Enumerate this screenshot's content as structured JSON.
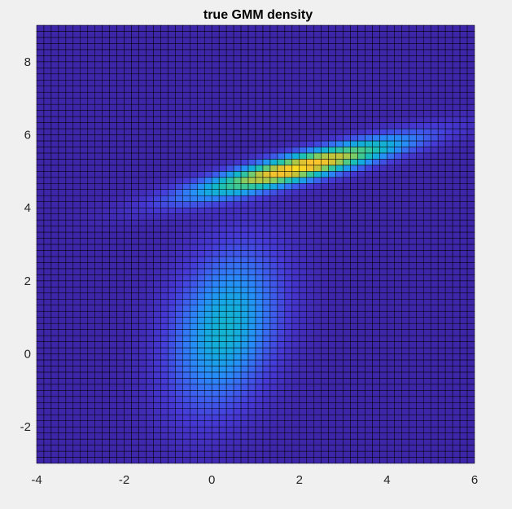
{
  "chart_data": {
    "type": "heatmap",
    "title": "true GMM density",
    "xlabel": "",
    "ylabel": "",
    "xlim": [
      -4,
      6
    ],
    "ylim": [
      -3,
      9
    ],
    "x_ticks": [
      -4,
      -2,
      0,
      2,
      4,
      6
    ],
    "y_ticks": [
      -2,
      0,
      2,
      4,
      6,
      8
    ],
    "x_tick_labels": [
      "-4",
      "-2",
      "0",
      "2",
      "4",
      "6"
    ],
    "y_tick_labels": [
      "-2",
      "0",
      "2",
      "4",
      "6",
      "8"
    ],
    "grid_resolution": {
      "nx": 61,
      "ny": 73
    },
    "colormap": "parula",
    "mesh_edges": true,
    "components": [
      {
        "mean": [
          0.3,
          0.7
        ],
        "covariance": [
          [
            0.7,
            0.35
          ],
          [
            0.35,
            2.2
          ]
        ],
        "peak_density": 0.45
      },
      {
        "mean": [
          2.0,
          5.1
        ],
        "covariance": [
          [
            2.6,
            0.75
          ],
          [
            0.75,
            0.28
          ]
        ],
        "peak_density": 1.0
      }
    ],
    "z_range": [
      0,
      1.0
    ]
  },
  "colors": {
    "figure_background": "#f0f0f0",
    "mesh_edge": "#000000",
    "low": "#3e2e9c",
    "high": "#f9fb0e"
  }
}
